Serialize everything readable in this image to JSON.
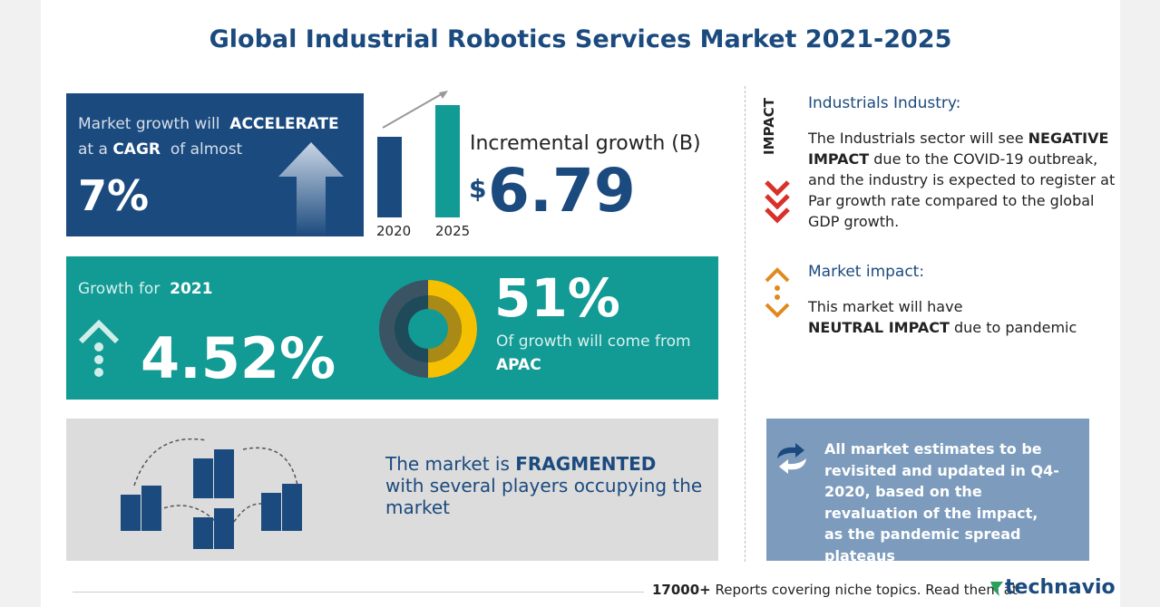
{
  "header": {
    "title": "Global Industrial Robotics Services Market 2021-2025"
  },
  "cagr": {
    "text1": "Market growth will",
    "emph1": "ACCELERATE",
    "text2": "at a",
    "emph2": "CAGR",
    "text3": "of almost",
    "value": "7%"
  },
  "incremental": {
    "bars": [
      "2020",
      "2025"
    ],
    "label": "Incremental growth (B)",
    "currency": "$",
    "value": "6.79"
  },
  "growth": {
    "label": "Growth for",
    "year": "2021",
    "value": "4.52%",
    "share": "51%",
    "share_text": "Of growth will come from",
    "region": "APAC"
  },
  "fragmented": {
    "text1": "The market is",
    "emph": "FRAGMENTED",
    "text2": "with several players occupying the market"
  },
  "impact": {
    "vertical": "IMPACT",
    "heading": "Industrials Industry:",
    "text1": "The Industrials sector will see",
    "emph": "NEGATIVE IMPACT",
    "text2": "due to the COVID-19 outbreak, and the industry is expected to register at Par growth rate compared to the global GDP growth."
  },
  "market_impact": {
    "heading": "Market impact:",
    "text1": "This market will have",
    "emph": "NEUTRAL IMPACT",
    "text2": "due to pandemic"
  },
  "note": {
    "text": "All market estimates to be revisited and updated in Q4-2020, based on the revaluation of the impact, as the pandemic spread plateaus"
  },
  "footer": {
    "count": "17000+",
    "text": "Reports covering niche topics. Read them at",
    "brand": "technavio"
  }
}
